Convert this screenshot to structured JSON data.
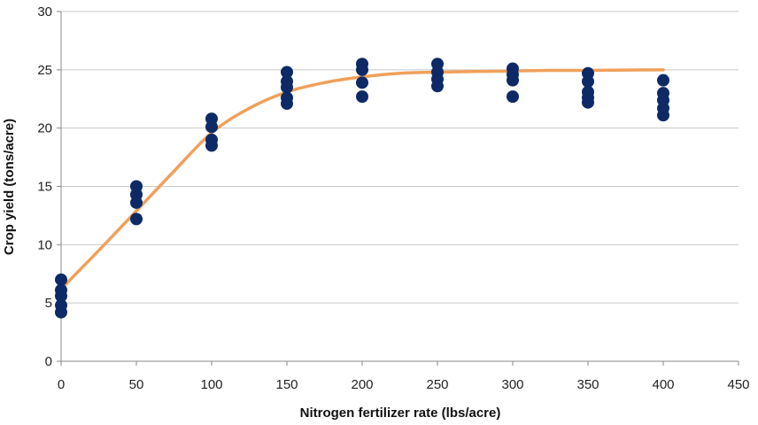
{
  "chart_data": {
    "type": "scatter",
    "title": "",
    "xlabel": "Nitrogen fertilizer rate (lbs/acre)",
    "ylabel": "Crop yield (tons/acre)",
    "xlim": [
      0,
      450
    ],
    "ylim": [
      0,
      30
    ],
    "xticks": [
      0,
      50,
      100,
      150,
      200,
      250,
      300,
      350,
      400,
      450
    ],
    "yticks": [
      0,
      5,
      10,
      15,
      20,
      25,
      30
    ],
    "grid": "horizontal",
    "legend": "none",
    "colors": {
      "points": "#0d2a66",
      "curve": "#f0a05a",
      "grid": "#c8c8c8",
      "axis": "#888888"
    },
    "series": [
      {
        "type": "scatter",
        "points": [
          [
            0,
            7.0
          ],
          [
            0,
            6.1
          ],
          [
            0,
            5.6
          ],
          [
            0,
            4.8
          ],
          [
            0,
            4.2
          ],
          [
            50,
            15.0
          ],
          [
            50,
            14.3
          ],
          [
            50,
            13.6
          ],
          [
            50,
            12.2
          ],
          [
            100,
            20.8
          ],
          [
            100,
            20.1
          ],
          [
            100,
            19.0
          ],
          [
            100,
            18.5
          ],
          [
            150,
            24.8
          ],
          [
            150,
            24.0
          ],
          [
            150,
            23.5
          ],
          [
            150,
            22.6
          ],
          [
            150,
            22.1
          ],
          [
            200,
            25.5
          ],
          [
            200,
            25.0
          ],
          [
            200,
            23.9
          ],
          [
            200,
            22.7
          ],
          [
            250,
            25.5
          ],
          [
            250,
            24.8
          ],
          [
            250,
            24.2
          ],
          [
            250,
            23.6
          ],
          [
            300,
            25.1
          ],
          [
            300,
            24.6
          ],
          [
            300,
            24.1
          ],
          [
            300,
            22.7
          ],
          [
            350,
            24.7
          ],
          [
            350,
            24.0
          ],
          [
            350,
            23.1
          ],
          [
            350,
            22.6
          ],
          [
            350,
            22.2
          ],
          [
            400,
            24.1
          ],
          [
            400,
            23.0
          ],
          [
            400,
            22.4
          ],
          [
            400,
            21.7
          ],
          [
            400,
            21.1
          ]
        ]
      },
      {
        "type": "line",
        "x": [
          0,
          25,
          50,
          75,
          100,
          125,
          150,
          175,
          200,
          225,
          250,
          275,
          300,
          325,
          350,
          375,
          400
        ],
        "y": [
          6.2,
          9.5,
          12.9,
          16.3,
          19.6,
          21.7,
          23.1,
          23.9,
          24.4,
          24.7,
          24.8,
          24.85,
          24.9,
          24.95,
          24.95,
          24.98,
          25.0
        ]
      }
    ]
  }
}
